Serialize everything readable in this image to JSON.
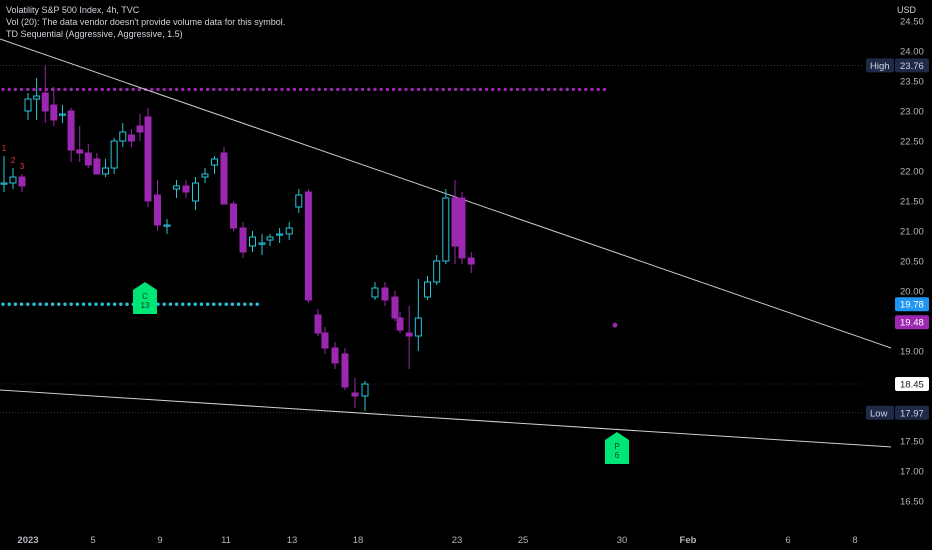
{
  "header": {
    "title": "Volatility S&P 500 Index, 4h, TVC",
    "volume_note": "Vol (20): The data vendor doesn't provide volume data for this symbol.",
    "indicator": "TD Sequential (Aggressive, Aggressive, 1.5)",
    "currency": "USD"
  },
  "colors": {
    "background": "#000000",
    "up": "#26c6da",
    "down": "#9c27b0",
    "buy_count": "#00e676",
    "sell_count": "#f23645",
    "resistance_dots": "#9c27b0",
    "support_dots": "#26c6da"
  },
  "chart_data": {
    "type": "candlestick",
    "symbol": "Volatility S&P 500 Index",
    "timeframe": "4h",
    "y_axis": {
      "ylim": [
        16.25,
        24.75
      ],
      "ticks": [
        "16.50",
        "17.00",
        "17.50",
        "18.00",
        "18.50",
        "19.00",
        "19.50",
        "20.00",
        "20.50",
        "21.00",
        "21.50",
        "22.00",
        "22.50",
        "23.00",
        "23.50",
        "24.00",
        "24.50"
      ]
    },
    "x_axis": {
      "ticks": [
        "2023",
        "5",
        "6",
        "9",
        "11",
        "13",
        "18",
        "23",
        "25",
        "30",
        "Feb",
        "6",
        "8"
      ]
    },
    "price_tags": [
      {
        "label": "High",
        "value": "23.76",
        "kind": "high"
      },
      {
        "label": "",
        "value": "19.78",
        "kind": "resistance"
      },
      {
        "label": "",
        "value": "19.48",
        "kind": "last"
      },
      {
        "label": "",
        "value": "18.45",
        "kind": "plain"
      },
      {
        "label": "Low",
        "value": "17.97",
        "kind": "low"
      }
    ],
    "resistance_level": 23.36,
    "support_level": 19.78,
    "trendlines": [
      {
        "name": "upper",
        "from": {
          "bar": -1,
          "price": 24.2
        },
        "to": {
          "bar": 62,
          "price": 19.05
        }
      },
      {
        "name": "lower",
        "from": {
          "bar": -1,
          "price": 18.35
        },
        "to": {
          "bar": 62,
          "price": 17.4
        }
      }
    ],
    "candles": [
      {
        "o": 21.8,
        "h": 22.25,
        "l": 21.65,
        "c": 21.8
      },
      {
        "o": 21.8,
        "h": 22.05,
        "l": 21.7,
        "c": 21.9
      },
      {
        "o": 21.9,
        "h": 21.95,
        "l": 21.65,
        "c": 21.75
      },
      {
        "o": 23.0,
        "h": 23.3,
        "l": 22.85,
        "c": 23.2
      },
      {
        "o": 23.2,
        "h": 23.55,
        "l": 22.85,
        "c": 23.25
      },
      {
        "o": 23.3,
        "h": 23.76,
        "l": 22.8,
        "c": 23.0
      },
      {
        "o": 23.1,
        "h": 23.4,
        "l": 22.75,
        "c": 22.85
      },
      {
        "o": 22.95,
        "h": 23.1,
        "l": 22.8,
        "c": 22.95
      },
      {
        "o": 23.0,
        "h": 23.05,
        "l": 22.15,
        "c": 22.35
      },
      {
        "o": 22.35,
        "h": 22.75,
        "l": 22.15,
        "c": 22.3
      },
      {
        "o": 22.3,
        "h": 22.45,
        "l": 22.05,
        "c": 22.1
      },
      {
        "o": 22.2,
        "h": 22.3,
        "l": 21.95,
        "c": 21.95
      },
      {
        "o": 21.95,
        "h": 22.2,
        "l": 21.9,
        "c": 22.05
      },
      {
        "o": 22.05,
        "h": 22.55,
        "l": 21.95,
        "c": 22.5
      },
      {
        "o": 22.5,
        "h": 22.8,
        "l": 22.4,
        "c": 22.65
      },
      {
        "o": 22.6,
        "h": 22.7,
        "l": 22.4,
        "c": 22.5
      },
      {
        "o": 22.75,
        "h": 22.95,
        "l": 22.5,
        "c": 22.65
      },
      {
        "o": 22.9,
        "h": 23.05,
        "l": 21.4,
        "c": 21.5
      },
      {
        "o": 21.6,
        "h": 21.85,
        "l": 21.0,
        "c": 21.1
      },
      {
        "o": 21.1,
        "h": 21.2,
        "l": 20.95,
        "c": 21.1
      },
      {
        "o": 21.7,
        "h": 21.85,
        "l": 21.55,
        "c": 21.75
      },
      {
        "o": 21.75,
        "h": 21.85,
        "l": 21.55,
        "c": 21.65
      },
      {
        "o": 21.5,
        "h": 21.9,
        "l": 21.35,
        "c": 21.8
      },
      {
        "o": 21.9,
        "h": 22.05,
        "l": 21.8,
        "c": 21.95
      },
      {
        "o": 22.1,
        "h": 22.25,
        "l": 21.95,
        "c": 22.2
      },
      {
        "o": 22.3,
        "h": 22.4,
        "l": 21.45,
        "c": 21.45
      },
      {
        "o": 21.45,
        "h": 21.5,
        "l": 21.0,
        "c": 21.05
      },
      {
        "o": 21.05,
        "h": 21.15,
        "l": 20.55,
        "c": 20.65
      },
      {
        "o": 20.75,
        "h": 21.0,
        "l": 20.65,
        "c": 20.9
      },
      {
        "o": 20.8,
        "h": 20.95,
        "l": 20.6,
        "c": 20.8
      },
      {
        "o": 20.85,
        "h": 20.95,
        "l": 20.75,
        "c": 20.9
      },
      {
        "o": 20.95,
        "h": 21.05,
        "l": 20.8,
        "c": 20.95
      },
      {
        "o": 20.95,
        "h": 21.15,
        "l": 20.85,
        "c": 21.05
      },
      {
        "o": 21.4,
        "h": 21.7,
        "l": 21.3,
        "c": 21.6
      },
      {
        "o": 21.65,
        "h": 21.7,
        "l": 19.8,
        "c": 19.85
      },
      {
        "o": 19.6,
        "h": 19.7,
        "l": 19.25,
        "c": 19.3
      },
      {
        "o": 19.3,
        "h": 19.4,
        "l": 18.95,
        "c": 19.05
      },
      {
        "o": 19.05,
        "h": 19.15,
        "l": 18.7,
        "c": 18.8
      },
      {
        "o": 18.95,
        "h": 19.05,
        "l": 18.35,
        "c": 18.4
      },
      {
        "o": 18.3,
        "h": 18.55,
        "l": 18.05,
        "c": 18.25
      },
      {
        "o": 18.25,
        "h": 18.5,
        "l": 18.0,
        "c": 18.45
      },
      {
        "o": 19.9,
        "h": 20.15,
        "l": 19.85,
        "c": 20.05
      },
      {
        "o": 20.05,
        "h": 20.15,
        "l": 19.75,
        "c": 19.85
      },
      {
        "o": 19.9,
        "h": 20.0,
        "l": 19.5,
        "c": 19.55
      },
      {
        "o": 19.55,
        "h": 19.65,
        "l": 19.3,
        "c": 19.35
      },
      {
        "o": 19.3,
        "h": 19.75,
        "l": 18.7,
        "c": 19.25
      },
      {
        "o": 19.25,
        "h": 20.2,
        "l": 19.0,
        "c": 19.55
      },
      {
        "o": 19.9,
        "h": 20.25,
        "l": 19.85,
        "c": 20.15
      },
      {
        "o": 20.15,
        "h": 20.6,
        "l": 20.1,
        "c": 20.5
      },
      {
        "o": 20.5,
        "h": 21.7,
        "l": 20.45,
        "c": 21.55
      },
      {
        "o": 21.55,
        "h": 21.85,
        "l": 20.45,
        "c": 20.75
      },
      {
        "o": 21.55,
        "h": 21.65,
        "l": 20.45,
        "c": 20.55
      },
      {
        "o": 20.55,
        "h": 20.65,
        "l": 20.3,
        "c": 20.45
      }
    ],
    "td_counts": [
      {
        "bar": 0,
        "label": "1",
        "pos": "above",
        "color": "sell"
      },
      {
        "bar": 1,
        "label": "2",
        "pos": "above",
        "color": "sell"
      },
      {
        "bar": 2,
        "label": "3",
        "pos": "above",
        "color": "sell"
      }
    ],
    "signals": [
      {
        "label": "C\n13",
        "price": 20.25,
        "pos": "below",
        "color": "buy"
      },
      {
        "label": "P\n6",
        "price": 17.75,
        "pos": "below",
        "color": "buy"
      }
    ],
    "extra_dot": 19.48
  }
}
